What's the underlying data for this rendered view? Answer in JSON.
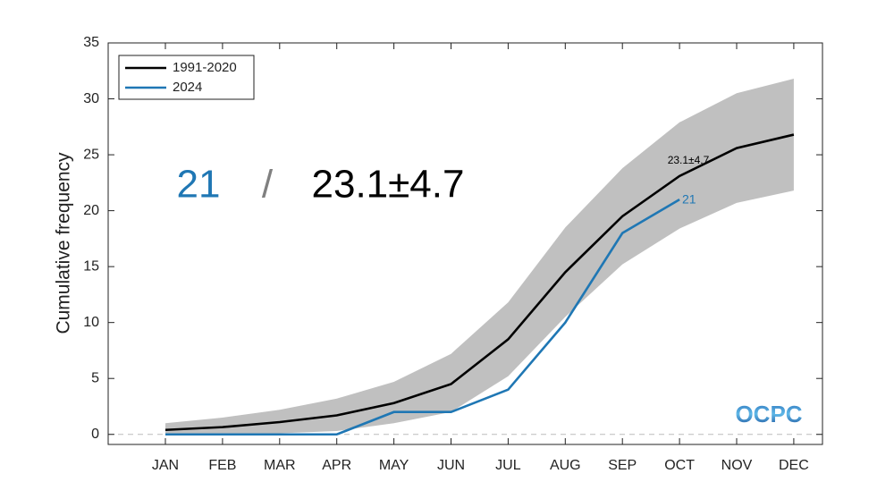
{
  "chart_data": {
    "type": "line",
    "y_label": "Cumulative frequency",
    "categories": [
      "JAN",
      "FEB",
      "MAR",
      "APR",
      "MAY",
      "JUN",
      "JUL",
      "AUG",
      "SEP",
      "OCT",
      "NOV",
      "DEC"
    ],
    "series": [
      {
        "name": "1991-2020",
        "color": "#000000",
        "values": [
          0.4,
          0.65,
          1.1,
          1.7,
          2.8,
          4.5,
          8.5,
          14.5,
          19.5,
          23.1,
          25.6,
          26.8
        ]
      },
      {
        "name": "2024",
        "color": "#1f77b4",
        "values": [
          0,
          0,
          0,
          0,
          2,
          2,
          4,
          10,
          18,
          21,
          null,
          null
        ]
      }
    ],
    "band": {
      "color": "#c0c0c0",
      "upper": [
        1.0,
        1.5,
        2.2,
        3.2,
        4.7,
        7.2,
        11.8,
        18.5,
        23.8,
        27.9,
        30.5,
        31.8
      ],
      "lower": [
        0,
        0,
        0.1,
        0.3,
        1.0,
        2.0,
        5.2,
        10.5,
        15.2,
        18.4,
        20.7,
        21.8
      ]
    },
    "ylim": [
      -0.9,
      35
    ],
    "yticks": [
      0,
      5,
      10,
      15,
      20,
      25,
      30,
      35
    ],
    "legend": "upper left",
    "annotations": [
      {
        "text": "21",
        "color": "#1f77b4"
      },
      {
        "text": "/",
        "color": "#808080"
      },
      {
        "text": "23.1±4.7",
        "color": "#000000"
      },
      {
        "text": "23.1±4.7",
        "color": "#000000"
      },
      {
        "text": "21",
        "color": "#1f77b4"
      }
    ],
    "logo": "OCPC"
  }
}
